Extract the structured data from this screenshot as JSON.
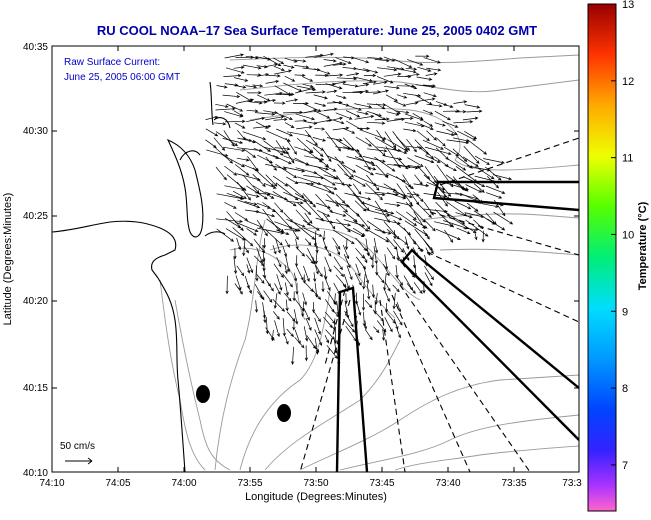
{
  "title": "RU COOL  NOAA–17  Sea Surface Temperature:  June 25, 2005 0402 GMT",
  "annotation": {
    "line1": "Raw Surface Current:",
    "line2": "June 25, 2005 06:00 GMT"
  },
  "scale": {
    "label": "50 cm/s"
  },
  "axes": {
    "xlabel": "Longitude (Degrees:Minutes)",
    "ylabel": "Latitude (Degrees:Minutes)",
    "xticks": [
      "74:10",
      "74:05",
      "74:00",
      "73:55",
      "73:50",
      "73:45",
      "73:40",
      "73:35",
      "73:3"
    ],
    "yticks": [
      "40:35",
      "40:30",
      "40:25",
      "40:20",
      "40:15",
      "40:10"
    ]
  },
  "colorbar": {
    "label": "Temperature (°C)",
    "ticks": [
      "13",
      "12",
      "11",
      "10",
      "9",
      "8",
      "7"
    ],
    "min": 6.4,
    "max": 13
  },
  "colors": {
    "title": "#0000aa",
    "annotation": "#0000cc",
    "coast": "#000000",
    "bathy": "#9a9a9a",
    "vector": "#000000"
  }
}
